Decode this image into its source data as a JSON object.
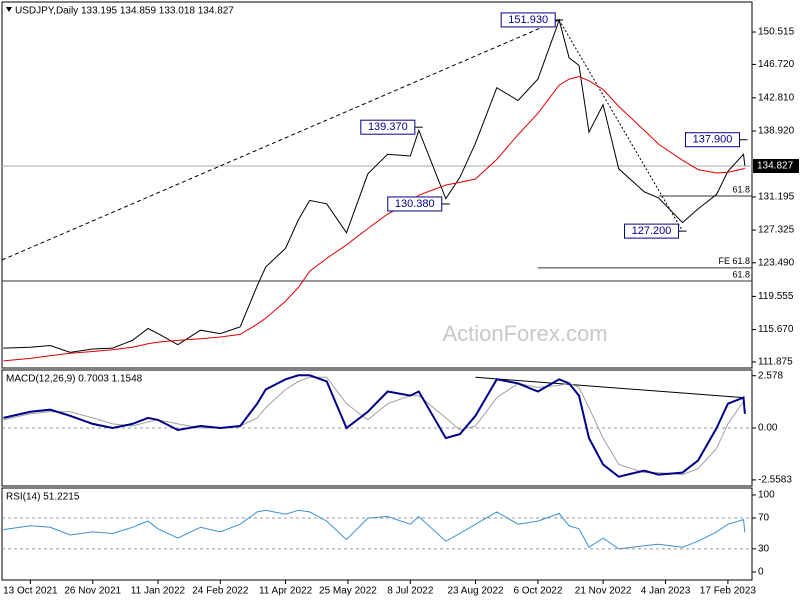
{
  "chart_data": {
    "type": "line",
    "watermark": "ActionForex.com",
    "x": [
      "2021-09-24",
      "2021-10-13",
      "2021-10-27",
      "2021-11-10",
      "2021-11-26",
      "2021-12-10",
      "2021-12-24",
      "2022-01-04",
      "2022-01-11",
      "2022-01-25",
      "2022-02-10",
      "2022-02-24",
      "2022-03-10",
      "2022-03-22",
      "2022-03-28",
      "2022-04-11",
      "2022-04-20",
      "2022-04-28",
      "2022-05-10",
      "2022-05-24",
      "2022-06-08",
      "2022-06-22",
      "2022-07-08",
      "2022-07-14",
      "2022-08-02",
      "2022-08-12",
      "2022-08-23",
      "2022-09-07",
      "2022-09-22",
      "2022-10-06",
      "2022-10-21",
      "2022-10-28",
      "2022-11-04",
      "2022-11-11",
      "2022-11-21",
      "2022-12-02",
      "2022-12-20",
      "2022-12-30",
      "2023-01-16",
      "2023-01-27",
      "2023-02-09",
      "2023-02-17",
      "2023-02-28",
      "2023-03-01"
    ],
    "xlim": [
      "2021-09-23",
      "2023-03-06"
    ],
    "xticks": [
      {
        "value": "2021-10-13",
        "label": "13 Oct 2021"
      },
      {
        "value": "2021-11-26",
        "label": "26 Nov 2021"
      },
      {
        "value": "2022-01-11",
        "label": "11 Jan 2022"
      },
      {
        "value": "2022-02-24",
        "label": "24 Feb 2022"
      },
      {
        "value": "2022-04-11",
        "label": "11 Apr 2022"
      },
      {
        "value": "2022-05-25",
        "label": "25 May 2022"
      },
      {
        "value": "2022-07-08",
        "label": "8 Jul 2022"
      },
      {
        "value": "2022-08-23",
        "label": "23 Aug 2022"
      },
      {
        "value": "2022-10-06",
        "label": "6 Oct 2022"
      },
      {
        "value": "2022-11-21",
        "label": "21 Nov 2022"
      },
      {
        "value": "2023-01-04",
        "label": "4 Jan 2023"
      },
      {
        "value": "2023-02-17",
        "label": "17 Feb 2023"
      }
    ],
    "panels": [
      {
        "title": "USDJPY,Daily  133.195 134.859 133.018 134.827",
        "ylim": [
          111.17,
          154.03
        ],
        "yticks": [
          {
            "value": 150.515,
            "label": "150.515"
          },
          {
            "value": 146.72,
            "label": "146.720"
          },
          {
            "value": 142.81,
            "label": "142.810"
          },
          {
            "value": 138.92,
            "label": "138.920"
          },
          131.195,
          127.325,
          {
            "value": 123.49,
            "label": "123.490"
          },
          119.555,
          {
            "value": 115.67,
            "label": "115.670"
          },
          111.875
        ],
        "grid": false,
        "last_price": 134.827,
        "series": [
          {
            "name": "USDJPY",
            "color": "#000000",
            "width": 1,
            "values": [
              113.5,
              113.6,
              113.8,
              113.0,
              113.4,
              113.5,
              114.4,
              115.8,
              115.2,
              113.9,
              115.6,
              115.2,
              116.0,
              120.8,
              123.0,
              125.2,
              128.5,
              130.8,
              130.4,
              127.0,
              133.9,
              136.2,
              136.0,
              139.0,
              131.0,
              133.5,
              137.5,
              144.0,
              142.5,
              145.0,
              151.9,
              147.5,
              146.6,
              138.8,
              142.0,
              134.5,
              131.8,
              131.1,
              128.2,
              129.8,
              131.5,
              134.2,
              136.2,
              134.827
            ]
          },
          {
            "name": "MA",
            "color": "#e00000",
            "width": 1,
            "values": [
              112.0,
              112.3,
              112.6,
              112.9,
              113.1,
              113.3,
              113.6,
              114.0,
              114.2,
              114.4,
              114.6,
              114.8,
              115.1,
              116.3,
              117.0,
              119.0,
              120.6,
              122.5,
              124.0,
              125.6,
              127.5,
              129.2,
              130.6,
              131.4,
              132.6,
              132.9,
              133.3,
              135.6,
              138.5,
              141.0,
              144.3,
              145.0,
              145.3,
              144.8,
              143.8,
              141.8,
              139.0,
              137.4,
              135.5,
              134.4,
              134.0,
              134.1,
              134.5,
              134.6
            ]
          }
        ],
        "levels": [
          {
            "value": 121.36,
            "label": "61.8"
          },
          {
            "value": 122.9,
            "label": "FE 61.8",
            "from": "2022-10-06"
          },
          {
            "value": 131.31,
            "label": "61.8",
            "from": "2022-12-30"
          }
        ],
        "trendlines": [
          {
            "from": [
              "2021-09-23",
              123.82
            ],
            "to": [
              "2022-10-21",
              151.93
            ],
            "style": "dashed"
          },
          {
            "from": [
              "2022-10-21",
              151.93
            ],
            "to": [
              "2023-01-16",
              127.2
            ],
            "style": "dotted"
          }
        ],
        "annotations": [
          {
            "x": "2022-10-21",
            "value": 151.93,
            "label": "151.930"
          },
          {
            "x": "2022-07-14",
            "value": 139.37,
            "label": "139.370"
          },
          {
            "x": "2022-08-02",
            "value": 130.38,
            "label": "130.380"
          },
          {
            "x": "2023-01-16",
            "value": 127.2,
            "label": "127.200"
          },
          {
            "x": "2023-02-28",
            "value": 137.9,
            "label": "137.900"
          }
        ]
      },
      {
        "title": "MACD(12,26,9) 0.7003 1.1548",
        "ylim": [
          -2.86,
          2.86
        ],
        "yticks": [
          2.578,
          {
            "value": 0,
            "label": "0.00"
          },
          -2.5583
        ],
        "grid": true,
        "series": [
          {
            "name": "Signal",
            "color": "#a0a0a0",
            "width": 1,
            "values": [
              0.4,
              0.7,
              0.8,
              0.8,
              0.5,
              0.2,
              0.1,
              0.3,
              0.4,
              0.2,
              0.0,
              0.0,
              0.1,
              0.5,
              1.0,
              1.9,
              2.3,
              2.5,
              2.5,
              1.2,
              0.4,
              1.2,
              1.6,
              1.6,
              0.5,
              -0.1,
              0.1,
              1.5,
              2.2,
              2.0,
              2.1,
              2.2,
              2.0,
              1.0,
              -0.5,
              -1.8,
              -2.2,
              -2.2,
              -2.3,
              -2.0,
              -1.0,
              0.2,
              1.3,
              1.1548
            ]
          },
          {
            "name": "MACD",
            "color": "#00008b",
            "width": 2,
            "values": [
              0.5,
              0.8,
              0.9,
              0.6,
              0.2,
              0.0,
              0.2,
              0.5,
              0.4,
              -0.1,
              0.1,
              0.0,
              0.1,
              1.2,
              1.9,
              2.4,
              2.6,
              2.6,
              2.3,
              0.0,
              0.8,
              1.8,
              1.6,
              1.8,
              -0.5,
              -0.3,
              0.6,
              2.4,
              2.2,
              1.8,
              2.4,
              2.2,
              1.6,
              -0.5,
              -1.8,
              -2.4,
              -2.1,
              -2.3,
              -2.2,
              -1.6,
              0.0,
              1.2,
              1.5,
              0.7003
            ]
          }
        ],
        "trendlines": [
          {
            "from": [
              "2022-08-23",
              2.5
            ],
            "to": [
              "2023-02-28",
              1.5
            ],
            "style": "solid"
          }
        ]
      },
      {
        "title": "RSI(14) 51.2215",
        "ylim": [
          -10.4,
          109
        ],
        "yticks": [
          100,
          70,
          30,
          0
        ],
        "grid": true,
        "series": [
          {
            "name": "RSI",
            "color": "#3c8fd6",
            "width": 1,
            "values": [
              55,
              60,
              58,
              48,
              52,
              50,
              58,
              66,
              56,
              44,
              58,
              52,
              62,
              78,
              80,
              75,
              80,
              78,
              66,
              42,
              70,
              72,
              62,
              72,
              40,
              50,
              62,
              78,
              62,
              66,
              76,
              60,
              56,
              32,
              44,
              30,
              34,
              36,
              32,
              40,
              52,
              62,
              68,
              51.2215
            ]
          }
        ]
      }
    ]
  }
}
